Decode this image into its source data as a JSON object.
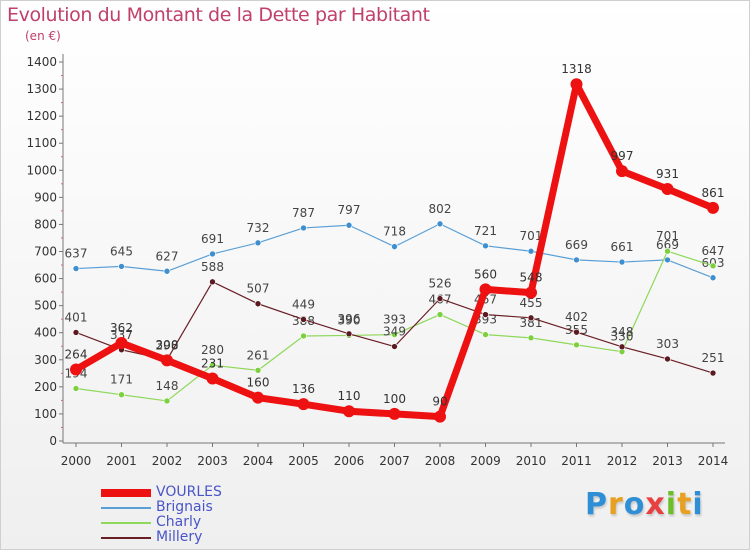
{
  "title": "Evolution du Montant de la Dette par Habitant",
  "unit": "(en €)",
  "logo": {
    "letters": [
      "P",
      "r",
      "o",
      "x",
      "i",
      "t",
      "i"
    ],
    "colors": [
      "#2f8fd6",
      "#e8a020",
      "#2f8fd6",
      "#e84040",
      "#6cbf2a",
      "#e8a020",
      "#2f8fd6"
    ]
  },
  "chart_data": {
    "type": "line",
    "title": "Evolution du Montant de la Dette par Habitant",
    "ylabel": "(en €)",
    "ylim": [
      0,
      1400
    ],
    "yticks": [
      "0",
      "100",
      "200",
      "300",
      "400",
      "500",
      "600",
      "700",
      "800",
      "900",
      "1000",
      "1100",
      "1200",
      "1300",
      "1400"
    ],
    "categories": [
      "2000",
      "2001",
      "2002",
      "2003",
      "2004",
      "2005",
      "2006",
      "2007",
      "2008",
      "2009",
      "2010",
      "2011",
      "2012",
      "2013",
      "2014"
    ],
    "series": [
      {
        "name": "Brignais",
        "color": "#5b9fd6",
        "values": [
          637,
          645,
          627,
          691,
          732,
          787,
          797,
          718,
          802,
          721,
          701,
          669,
          661,
          669,
          603
        ]
      },
      {
        "name": "Charly",
        "color": "#8ed85a",
        "values": [
          194,
          171,
          148,
          280,
          261,
          388,
          390,
          393,
          467,
          393,
          381,
          355,
          330,
          701,
          647
        ]
      },
      {
        "name": "Millery",
        "color": "#6a1f25",
        "values": [
          401,
          337,
          300,
          588,
          507,
          449,
          396,
          349,
          526,
          467,
          455,
          402,
          348,
          303,
          251
        ]
      },
      {
        "name": "VOURLES",
        "color": "#ee1111",
        "values": [
          264,
          362,
          298,
          231,
          160,
          136,
          110,
          100,
          90,
          560,
          548,
          1318,
          997,
          931,
          861
        ]
      }
    ],
    "legend_order": [
      "VOURLES",
      "Brignais",
      "Charly",
      "Millery"
    ],
    "legend_position": "bottom-left",
    "grid": false
  }
}
